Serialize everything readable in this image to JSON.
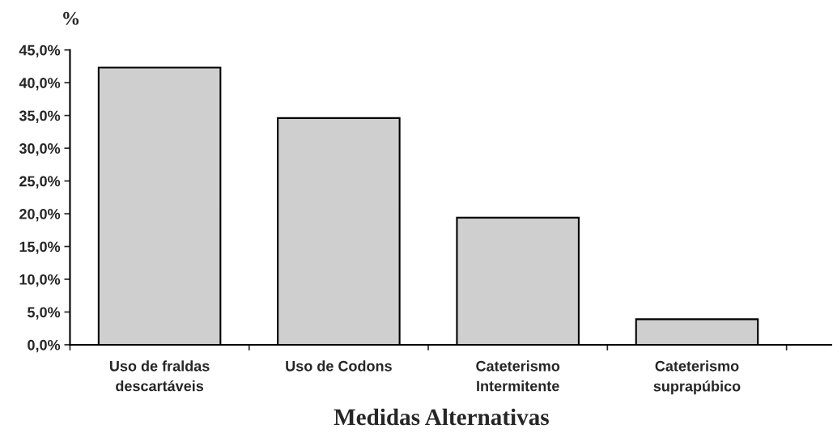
{
  "chart_data": {
    "type": "bar",
    "ylabel": "%",
    "xlabel": "Medidas Alternativas",
    "categories": [
      "Uso de fraldas\ndescartáveis",
      "Uso de Codons",
      "Cateterismo\nIntermitente",
      "Cateterismo\nsuprapúbico"
    ],
    "values": [
      42.3,
      34.6,
      19.4,
      3.9
    ],
    "color": "#cfcfcf",
    "ylim": [
      0,
      45
    ],
    "yticks": [
      {
        "value": 0,
        "label": "0,0%"
      },
      {
        "value": 5,
        "label": "5,0%"
      },
      {
        "value": 10,
        "label": "10,0%"
      },
      {
        "value": 15,
        "label": "15,0%"
      },
      {
        "value": 20,
        "label": "20,0%"
      },
      {
        "value": 25,
        "label": "25,0%"
      },
      {
        "value": 30,
        "label": "30,0%"
      },
      {
        "value": 35,
        "label": "35,0%"
      },
      {
        "value": 40,
        "label": "40,0%"
      },
      {
        "value": 45,
        "label": "45,0%"
      }
    ],
    "grid": false,
    "legend": false
  }
}
